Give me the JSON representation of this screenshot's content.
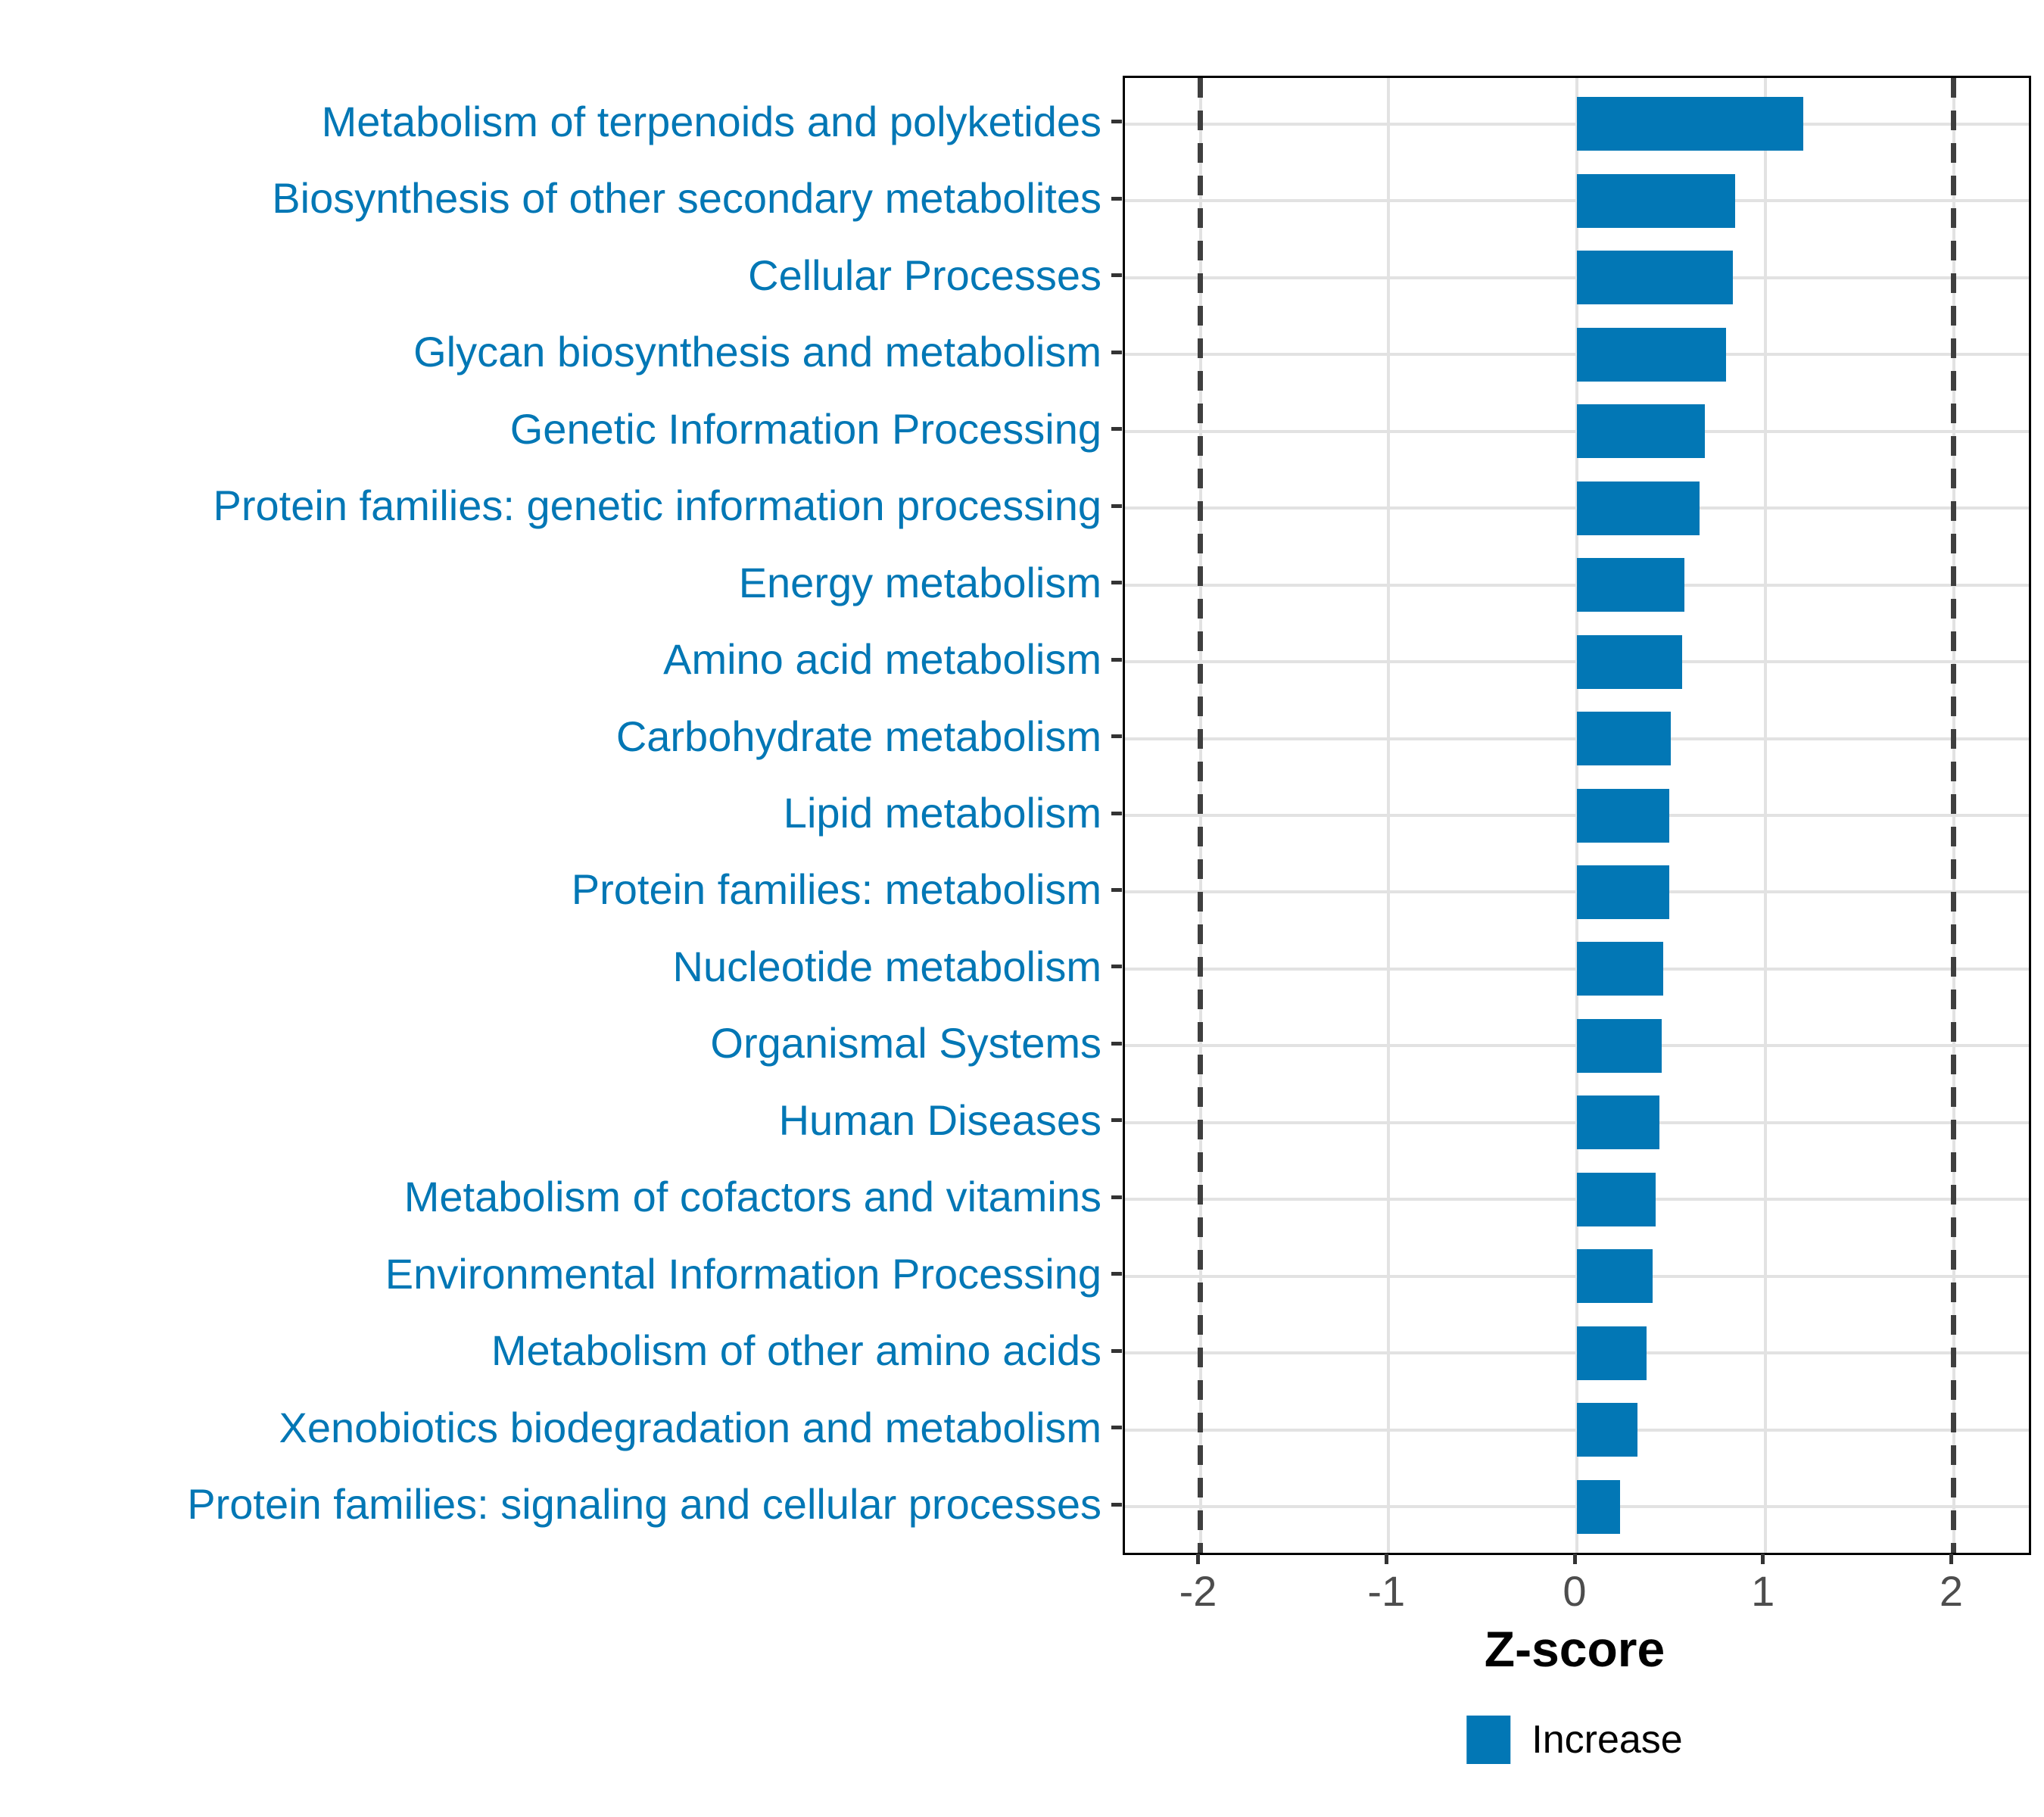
{
  "chart_data": {
    "type": "bar",
    "orientation": "horizontal",
    "title": "",
    "xlabel": "Z-score",
    "categories": [
      "Metabolism of terpenoids and polyketides",
      "Biosynthesis of other secondary metabolites",
      "Cellular Processes",
      "Glycan biosynthesis and metabolism",
      "Genetic Information Processing",
      "Protein families: genetic information processing",
      "Energy metabolism",
      "Amino acid metabolism",
      "Carbohydrate metabolism",
      "Lipid metabolism",
      "Protein families: metabolism",
      "Nucleotide metabolism",
      "Organismal Systems",
      "Human Diseases",
      "Metabolism of cofactors and vitamins",
      "Environmental Information Processing",
      "Metabolism of other amino acids",
      "Xenobiotics biodegradation and metabolism",
      "Protein families: signaling and cellular processes"
    ],
    "values": [
      1.2,
      0.84,
      0.83,
      0.79,
      0.68,
      0.65,
      0.57,
      0.56,
      0.5,
      0.49,
      0.49,
      0.46,
      0.45,
      0.44,
      0.42,
      0.4,
      0.37,
      0.32,
      0.23
    ],
    "x_ticks": [
      "-2",
      "-1",
      "0",
      "1",
      "2"
    ],
    "x_tick_values": [
      -2,
      -1,
      0,
      1,
      2
    ],
    "xlim": [
      -2.4,
      2.4
    ],
    "reference_lines_x": [
      -2,
      2
    ],
    "grid": true,
    "legend_position": "bottom",
    "legend": {
      "label": "Increase",
      "color": "#0277b5"
    },
    "colors": {
      "bar": "#0277b5",
      "category_label": "#0277b5",
      "tick_label": "#4d4d4d",
      "grid": "#e2e2e2",
      "reference_line": "#3f3f3f"
    }
  }
}
